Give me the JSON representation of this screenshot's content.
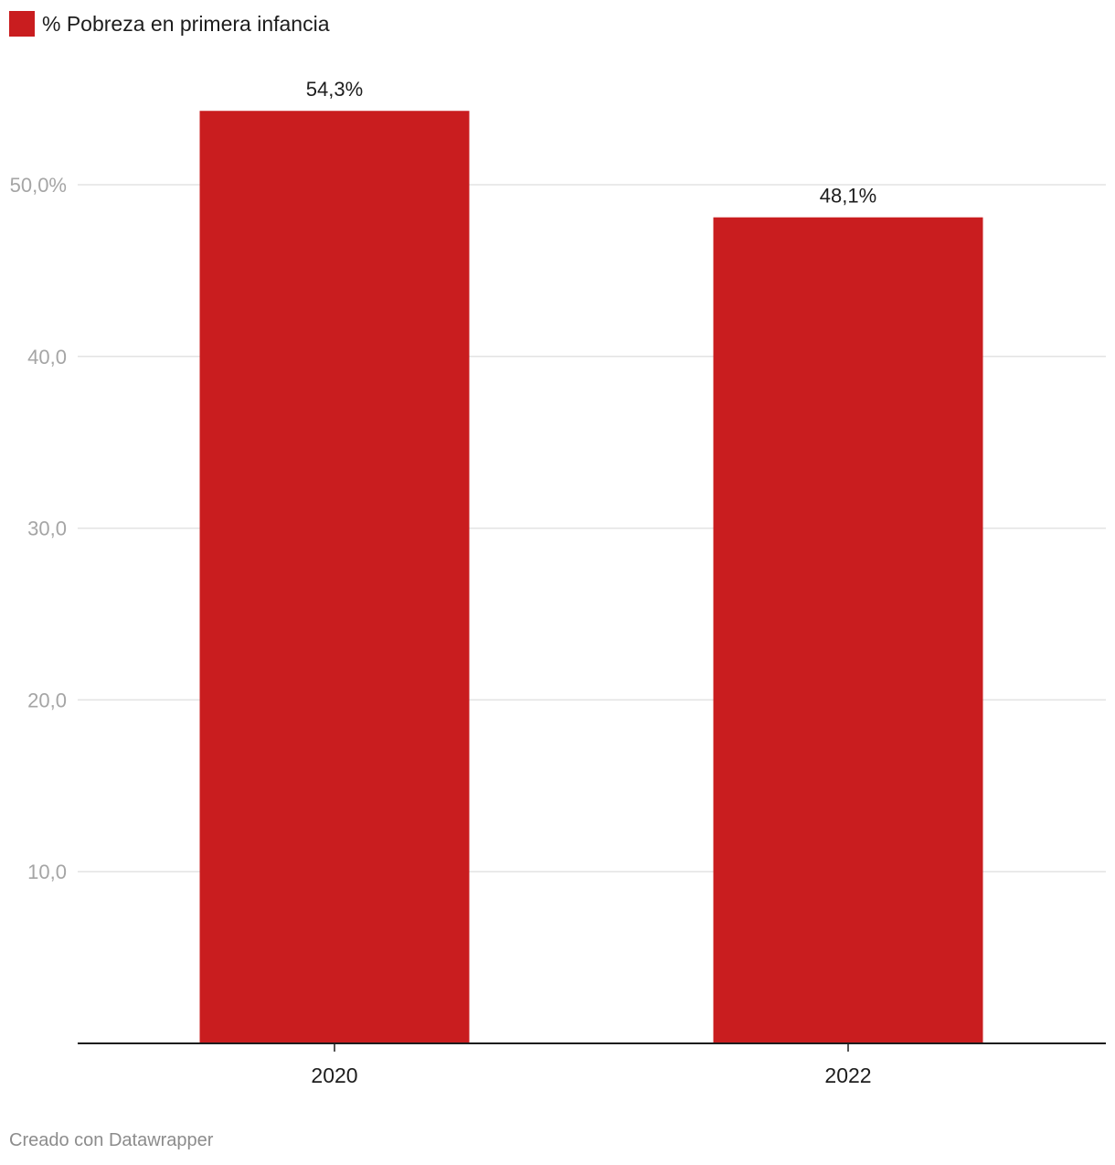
{
  "chart_data": {
    "type": "bar",
    "categories": [
      "2020",
      "2022"
    ],
    "series": [
      {
        "name": "% Pobreza en primera infancia",
        "values": [
          54.3,
          48.1
        ],
        "value_labels": [
          "54,3%",
          "48,1%"
        ],
        "color": "#c91d1f"
      }
    ],
    "ylim": [
      0,
      55
    ],
    "yticks": [
      10,
      20,
      30,
      40,
      50
    ],
    "ytick_labels": [
      "10,0",
      "20,0",
      "30,0",
      "40,0",
      "50,0%"
    ],
    "title": "",
    "xlabel": "",
    "ylabel": "",
    "grid": true,
    "legend_position": "top-left"
  },
  "legend": {
    "label": "% Pobreza en primera infancia",
    "color": "#c91d1f"
  },
  "footer": {
    "text": "Creado con Datawrapper"
  },
  "colors": {
    "grid": "#e3e3e3",
    "axis": "#1d1d1d"
  }
}
